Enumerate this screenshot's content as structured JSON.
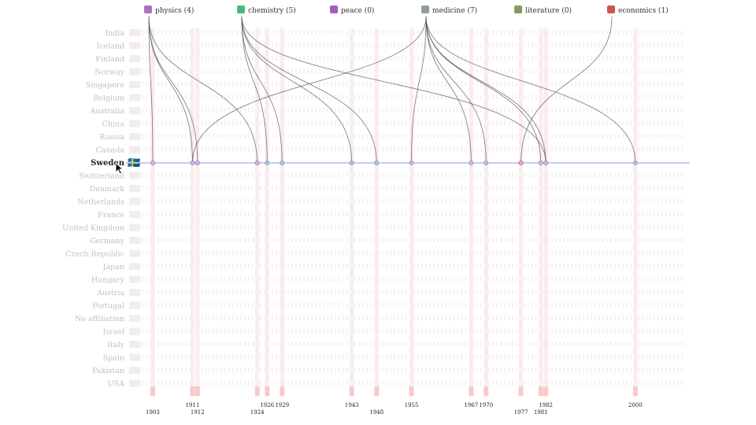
{
  "chart_data": {
    "type": "other",
    "description_free": true,
    "categories": [
      {
        "id": "physics",
        "label": "physics (4)",
        "icon": "atom-icon",
        "color": "#9b59b6",
        "count": 4
      },
      {
        "id": "chemistry",
        "label": "chemistry (5)",
        "icon": "test-tube-icon",
        "color": "#27ae60",
        "count": 5
      },
      {
        "id": "peace",
        "label": "peace (0)",
        "icon": "peace-icon",
        "color": "#8e44ad",
        "count": 0
      },
      {
        "id": "medicine",
        "label": "medicine (7)",
        "icon": "pill-icon",
        "color": "#7f8c8d",
        "count": 7
      },
      {
        "id": "literature",
        "label": "literature (0)",
        "icon": "books-icon",
        "color": "#6d8b3c",
        "count": 0
      },
      {
        "id": "economics",
        "label": "economics (1)",
        "icon": "chart-icon",
        "color": "#c0392b",
        "count": 1
      }
    ],
    "countries": [
      "India",
      "Iceland",
      "Finland",
      "Norway",
      "Singapore",
      "Belgium",
      "Australia",
      "China",
      "Russia",
      "Canada",
      "Sweden",
      "Switzerland",
      "Denmark",
      "Netherlands",
      "France",
      "United Kingdom",
      "Germany",
      "Czech Republic",
      "Japan",
      "Hungary",
      "Austria",
      "Portugal",
      "No affiliation",
      "Israel",
      "Italy",
      "Spain",
      "Pakistan",
      "USA"
    ],
    "selected_country": "Sweden",
    "selected_flag": "🇸🇪",
    "year_labels_top": [
      "1911",
      "1926",
      "1929",
      "1943",
      "1955",
      "1967",
      "1970",
      "1982",
      "2000"
    ],
    "year_labels_bottom": [
      "1903",
      "1912",
      "1924",
      "1948",
      "1977",
      "1981"
    ],
    "prizes": [
      {
        "year": 1903,
        "category": "physics"
      },
      {
        "year": 1911,
        "category": "physics"
      },
      {
        "year": 1912,
        "category": "physics"
      },
      {
        "year": 1924,
        "category": "physics"
      },
      {
        "year": 1911,
        "category": "medicine"
      },
      {
        "year": 1926,
        "category": "chemistry"
      },
      {
        "year": 1929,
        "category": "chemistry"
      },
      {
        "year": 1943,
        "category": "chemistry"
      },
      {
        "year": 1948,
        "category": "chemistry"
      },
      {
        "year": 1982,
        "category": "chemistry"
      },
      {
        "year": 1955,
        "category": "medicine"
      },
      {
        "year": 1967,
        "category": "medicine"
      },
      {
        "year": 1970,
        "category": "medicine"
      },
      {
        "year": 1981,
        "category": "medicine"
      },
      {
        "year": 1982,
        "category": "medicine"
      },
      {
        "year": 2000,
        "category": "medicine"
      },
      {
        "year": 1977,
        "category": "economics"
      }
    ],
    "colors": {
      "axis": "#b8b8e8",
      "stripe": "#f7c6c6",
      "link": "#555555"
    }
  }
}
